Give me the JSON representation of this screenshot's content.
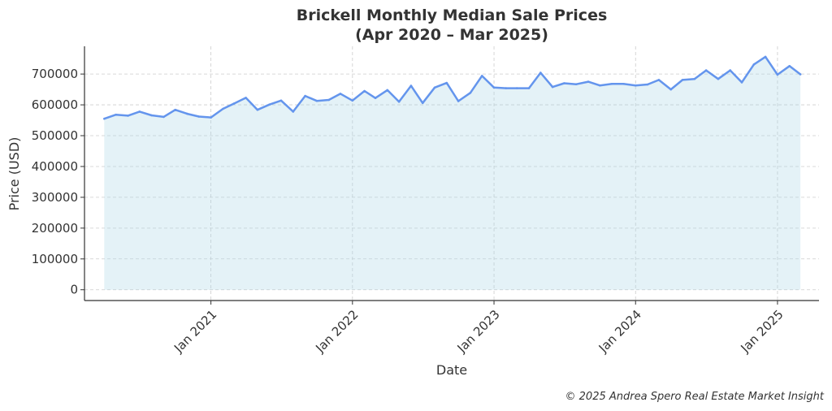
{
  "chart_data": {
    "type": "area",
    "title": "Brickell Monthly Median Sale Prices",
    "subtitle": "(Apr 2020 – Mar 2025)",
    "xlabel": "Date",
    "ylabel": "Price (USD)",
    "ylim": [
      -35000,
      790000
    ],
    "xlim": [
      "2020-02-10",
      "2025-04-18"
    ],
    "yticks": [
      0,
      100000,
      200000,
      300000,
      400000,
      500000,
      600000,
      700000
    ],
    "xticks": [
      {
        "date": "2021-01-01",
        "label": "Jan 2021"
      },
      {
        "date": "2022-01-01",
        "label": "Jan 2022"
      },
      {
        "date": "2023-01-01",
        "label": "Jan 2023"
      },
      {
        "date": "2024-01-01",
        "label": "Jan 2024"
      },
      {
        "date": "2025-01-01",
        "label": "Jan 2025"
      }
    ],
    "grid": true,
    "line_color": "#6495ED",
    "fill_color": "#ADD8E6",
    "x": [
      "2020-04",
      "2020-05",
      "2020-06",
      "2020-07",
      "2020-08",
      "2020-09",
      "2020-10",
      "2020-11",
      "2020-12",
      "2021-01",
      "2021-02",
      "2021-03",
      "2021-04",
      "2021-05",
      "2021-06",
      "2021-07",
      "2021-08",
      "2021-09",
      "2021-10",
      "2021-11",
      "2021-12",
      "2022-01",
      "2022-02",
      "2022-03",
      "2022-04",
      "2022-05",
      "2022-06",
      "2022-07",
      "2022-08",
      "2022-09",
      "2022-10",
      "2022-11",
      "2022-12",
      "2023-01",
      "2023-02",
      "2023-03",
      "2023-04",
      "2023-05",
      "2023-06",
      "2023-07",
      "2023-08",
      "2023-09",
      "2023-10",
      "2023-11",
      "2023-12",
      "2024-01",
      "2024-02",
      "2024-03",
      "2024-04",
      "2024-05",
      "2024-06",
      "2024-07",
      "2024-08",
      "2024-09",
      "2024-10",
      "2024-11",
      "2024-12",
      "2025-01",
      "2025-02",
      "2025-03"
    ],
    "series": [
      {
        "values": [
          555000,
          568000,
          565000,
          578000,
          566000,
          561000,
          584000,
          571000,
          562000,
          559000,
          587000,
          604000,
          623000,
          584000,
          601000,
          614000,
          578000,
          629000,
          613000,
          616000,
          636000,
          614000,
          645000,
          622000,
          648000,
          610000,
          662000,
          606000,
          656000,
          671000,
          612000,
          639000,
          694000,
          656000,
          654000,
          654000,
          654000,
          704000,
          658000,
          670000,
          667000,
          675000,
          663000,
          668000,
          668000,
          663000,
          666000,
          681000,
          650000,
          681000,
          684000,
          712000,
          684000,
          712000,
          673000,
          731000,
          756000,
          698000,
          726000,
          699000
        ]
      }
    ]
  },
  "credit": "© 2025 Andrea Spero Real Estate Market Insight"
}
